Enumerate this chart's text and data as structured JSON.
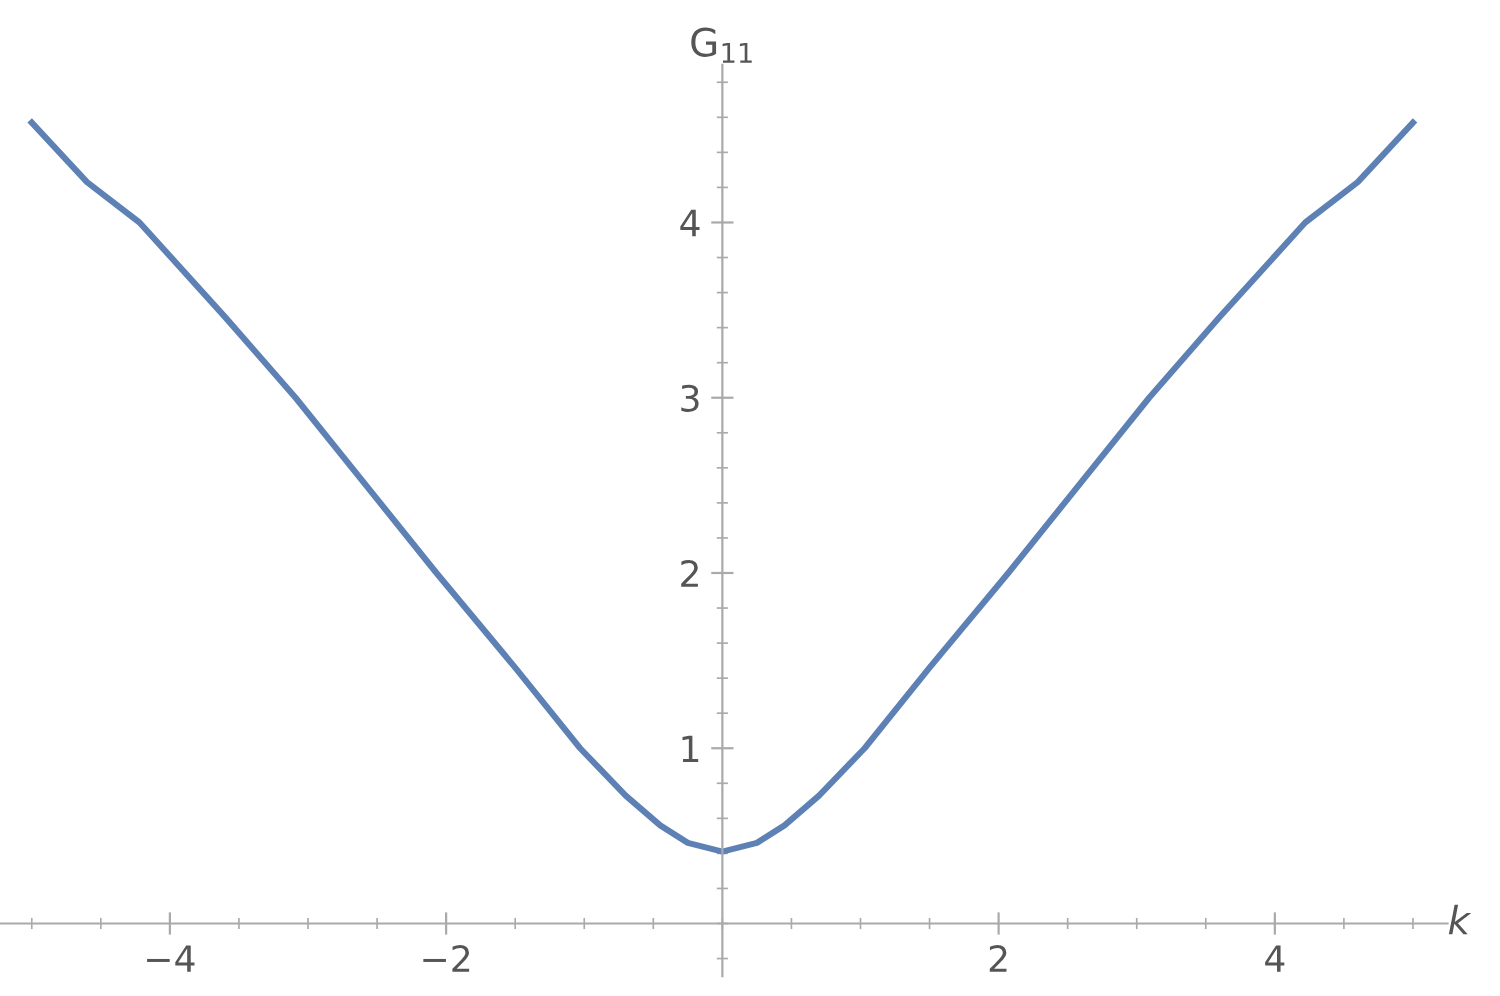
{
  "chart_data": {
    "type": "line",
    "xlabel": "k",
    "ylabel": "G$_{11}$",
    "x": [
      -5,
      -4.6,
      -4.22,
      -3.6,
      -3.09,
      -2.6,
      -2.07,
      -1.5,
      -1.03,
      -0.7,
      -0.45,
      -0.25,
      0,
      0.25,
      0.45,
      0.7,
      1.03,
      1.5,
      2.07,
      2.6,
      3.09,
      3.6,
      4.22,
      4.6,
      5
    ],
    "series": [
      {
        "color": "#5e81b5",
        "values": [
          4.57,
          4.23,
          4,
          3.46,
          3,
          2.52,
          2,
          1.46,
          1,
          0.73,
          0.56,
          0.46,
          0.41,
          0.46,
          0.56,
          0.73,
          1,
          1.46,
          2,
          2.52,
          3,
          3.46,
          4,
          4.23,
          4.57
        ]
      }
    ],
    "xlim": [
      -5.23,
      5.25
    ],
    "ylim": [
      -0.3,
      4.9
    ],
    "xticks": [
      -4,
      -2,
      2,
      4
    ],
    "yticks": [
      1,
      2,
      3,
      4
    ],
    "grid": false,
    "legend": false,
    "marker": "none",
    "line_style": "solid"
  }
}
